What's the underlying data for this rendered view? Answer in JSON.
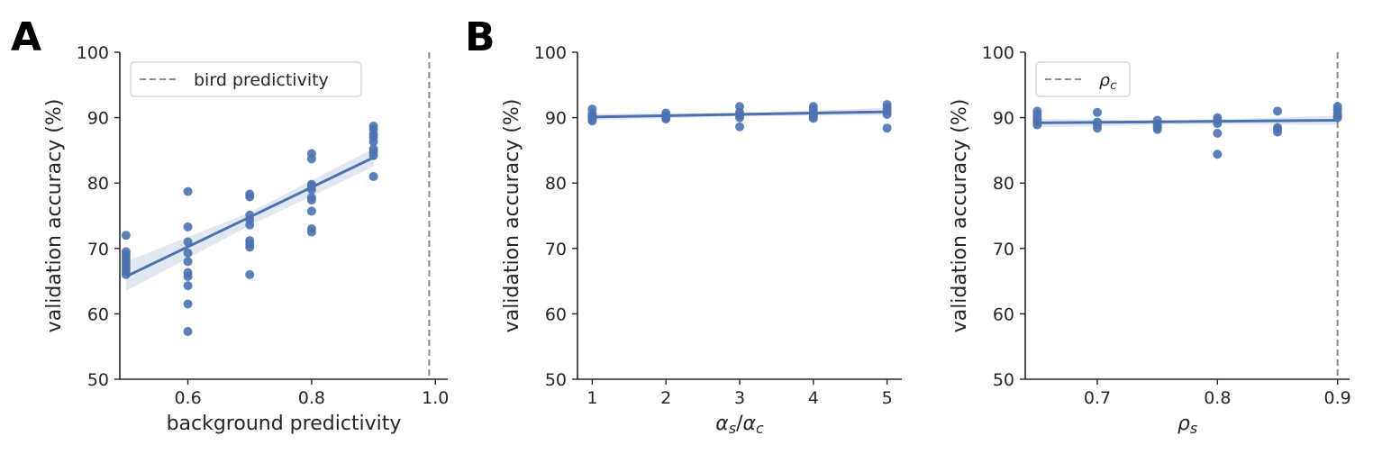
{
  "panels": [
    "A",
    "B"
  ],
  "colors": {
    "points": "#4c72b0",
    "line": "#4c72b0",
    "band": "#4c72b0",
    "ref_line": "#8c8c8c",
    "axis": "#262626"
  },
  "chart_data": [
    {
      "type": "scatter",
      "panel": "A",
      "xlabel": "background predictivity",
      "ylabel": "validation accuracy (%)",
      "xlim": [
        0.49,
        1.02
      ],
      "ylim": [
        50,
        100
      ],
      "xticks": [
        "0.6",
        "0.8",
        "1.0"
      ],
      "xtick_values": [
        0.6,
        0.8,
        1.0
      ],
      "yticks": [
        "50",
        "60",
        "70",
        "80",
        "90",
        "100"
      ],
      "ytick_values": [
        50,
        60,
        70,
        80,
        90,
        100
      ],
      "points": [
        [
          0.5,
          72.0
        ],
        [
          0.5,
          69.5
        ],
        [
          0.5,
          69.0
        ],
        [
          0.5,
          68.5
        ],
        [
          0.5,
          68.0
        ],
        [
          0.5,
          67.5
        ],
        [
          0.5,
          67.0
        ],
        [
          0.5,
          66.5
        ],
        [
          0.5,
          66.0
        ],
        [
          0.6,
          78.7
        ],
        [
          0.6,
          73.3
        ],
        [
          0.6,
          71.0
        ],
        [
          0.6,
          69.3
        ],
        [
          0.6,
          68.0
        ],
        [
          0.6,
          66.3
        ],
        [
          0.6,
          65.7
        ],
        [
          0.6,
          64.3
        ],
        [
          0.6,
          61.5
        ],
        [
          0.6,
          57.3
        ],
        [
          0.7,
          78.3
        ],
        [
          0.7,
          77.9
        ],
        [
          0.7,
          75.1
        ],
        [
          0.7,
          74.4
        ],
        [
          0.7,
          73.6
        ],
        [
          0.7,
          71.2
        ],
        [
          0.7,
          70.7
        ],
        [
          0.7,
          70.2
        ],
        [
          0.7,
          66.0
        ],
        [
          0.8,
          84.5
        ],
        [
          0.8,
          83.7
        ],
        [
          0.8,
          79.8
        ],
        [
          0.8,
          79.5
        ],
        [
          0.8,
          79.0
        ],
        [
          0.8,
          77.8
        ],
        [
          0.8,
          77.4
        ],
        [
          0.8,
          75.7
        ],
        [
          0.8,
          73.0
        ],
        [
          0.8,
          72.5
        ],
        [
          0.9,
          88.7
        ],
        [
          0.9,
          88.2
        ],
        [
          0.9,
          87.5
        ],
        [
          0.9,
          87.0
        ],
        [
          0.9,
          86.3
        ],
        [
          0.9,
          85.2
        ],
        [
          0.9,
          84.7
        ],
        [
          0.9,
          84.2
        ],
        [
          0.9,
          81.0
        ]
      ],
      "fit_line": {
        "x": [
          0.5,
          0.9
        ],
        "y": [
          65.7,
          83.9
        ]
      },
      "ci_band": {
        "x": [
          0.5,
          0.7,
          0.9
        ],
        "lower": [
          63.5,
          73.5,
          82.5
        ],
        "upper": [
          68.0,
          75.5,
          85.3
        ]
      },
      "ref_line": {
        "x": 0.99,
        "label": "bird predictivity"
      },
      "legend": {
        "placement": "top-left"
      }
    },
    {
      "type": "scatter",
      "panel": "B",
      "xlabel_parts": [
        [
          "α",
          "i"
        ],
        [
          "s",
          "sub"
        ],
        [
          "/",
          "n"
        ],
        [
          "α",
          "i"
        ],
        [
          "c",
          "sub"
        ]
      ],
      "ylabel": "validation accuracy (%)",
      "xlim": [
        0.8,
        5.2
      ],
      "ylim": [
        50,
        100
      ],
      "xticks": [
        "1",
        "2",
        "3",
        "4",
        "5"
      ],
      "xtick_values": [
        1,
        2,
        3,
        4,
        5
      ],
      "yticks": [
        "50",
        "60",
        "70",
        "80",
        "90",
        "100"
      ],
      "ytick_values": [
        50,
        60,
        70,
        80,
        90,
        100
      ],
      "points": [
        [
          1,
          91.3
        ],
        [
          1,
          90.6
        ],
        [
          1,
          90.2
        ],
        [
          1,
          90.0
        ],
        [
          1,
          89.8
        ],
        [
          1,
          89.5
        ],
        [
          2,
          90.7
        ],
        [
          2,
          90.3
        ],
        [
          2,
          90.0
        ],
        [
          2,
          89.8
        ],
        [
          3,
          91.7
        ],
        [
          3,
          90.8
        ],
        [
          3,
          90.3
        ],
        [
          3,
          90.0
        ],
        [
          3,
          88.6
        ],
        [
          4,
          91.7
        ],
        [
          4,
          91.2
        ],
        [
          4,
          90.6
        ],
        [
          4,
          90.2
        ],
        [
          4,
          89.9
        ],
        [
          5,
          92.0
        ],
        [
          5,
          91.5
        ],
        [
          5,
          91.0
        ],
        [
          5,
          90.5
        ],
        [
          5,
          88.4
        ]
      ],
      "fit_line": {
        "x": [
          1,
          5
        ],
        "y": [
          90.1,
          90.9
        ]
      },
      "ci_band": {
        "x": [
          1,
          3,
          5
        ],
        "lower": [
          89.6,
          90.2,
          90.4
        ],
        "upper": [
          90.6,
          90.7,
          91.5
        ]
      }
    },
    {
      "type": "scatter",
      "panel": "B",
      "xlabel_parts": [
        [
          "ρ",
          "i"
        ],
        [
          "s",
          "sub"
        ]
      ],
      "ylabel": "validation accuracy (%)",
      "xlim": [
        0.64,
        0.91
      ],
      "ylim": [
        50,
        100
      ],
      "xticks": [
        "0.7",
        "0.8",
        "0.9"
      ],
      "xtick_values": [
        0.7,
        0.8,
        0.9
      ],
      "yticks": [
        "50",
        "60",
        "70",
        "80",
        "90",
        "100"
      ],
      "ytick_values": [
        50,
        60,
        70,
        80,
        90,
        100
      ],
      "points": [
        [
          0.65,
          91.0
        ],
        [
          0.65,
          90.5
        ],
        [
          0.65,
          90.0
        ],
        [
          0.65,
          89.7
        ],
        [
          0.65,
          89.3
        ],
        [
          0.65,
          88.9
        ],
        [
          0.7,
          90.8
        ],
        [
          0.7,
          89.3
        ],
        [
          0.7,
          88.9
        ],
        [
          0.7,
          88.4
        ],
        [
          0.75,
          89.6
        ],
        [
          0.75,
          89.0
        ],
        [
          0.75,
          88.6
        ],
        [
          0.75,
          88.2
        ],
        [
          0.8,
          90.0
        ],
        [
          0.8,
          89.6
        ],
        [
          0.8,
          89.1
        ],
        [
          0.8,
          87.6
        ],
        [
          0.8,
          84.4
        ],
        [
          0.85,
          91.0
        ],
        [
          0.85,
          88.5
        ],
        [
          0.85,
          88.2
        ],
        [
          0.85,
          87.8
        ],
        [
          0.9,
          91.7
        ],
        [
          0.9,
          91.2
        ],
        [
          0.9,
          90.6
        ],
        [
          0.9,
          90.2
        ],
        [
          0.9,
          90.0
        ]
      ],
      "fit_line": {
        "x": [
          0.65,
          0.9
        ],
        "y": [
          89.2,
          89.6
        ]
      },
      "ci_band": {
        "x": [
          0.65,
          0.775,
          0.9
        ],
        "lower": [
          88.5,
          89.0,
          88.9
        ],
        "upper": [
          89.8,
          89.6,
          90.3
        ]
      },
      "ref_line": {
        "x": 0.9,
        "label_parts": [
          [
            "ρ",
            "i"
          ],
          [
            "c",
            "sub"
          ]
        ]
      },
      "legend": {
        "placement": "top-left"
      }
    }
  ]
}
